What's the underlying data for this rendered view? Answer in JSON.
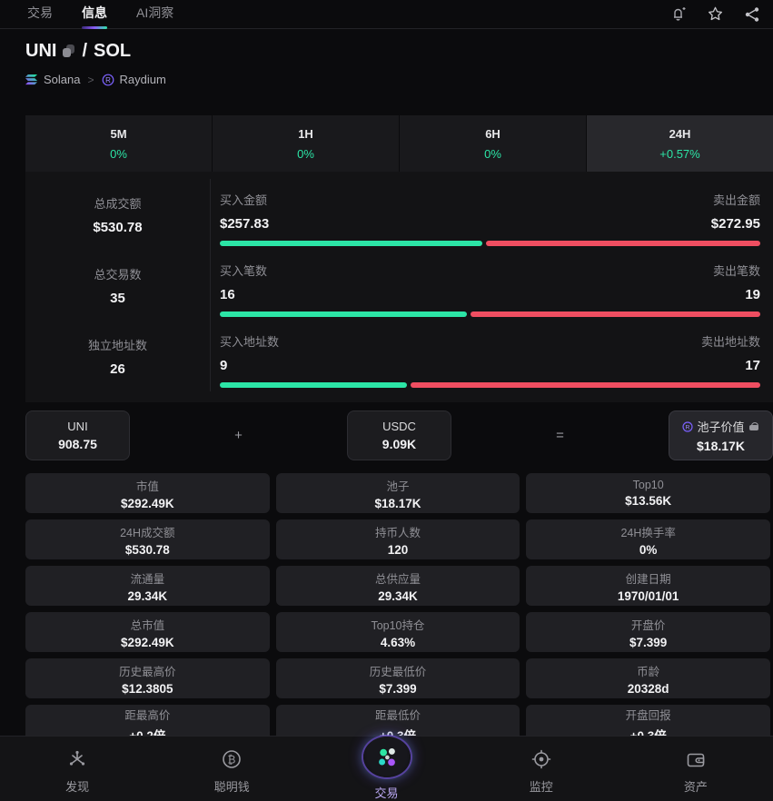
{
  "top_nav": {
    "tabs": [
      {
        "label": "交易",
        "active": false
      },
      {
        "label": "信息",
        "active": true
      },
      {
        "label": "AI洞察",
        "active": false
      }
    ],
    "icons": [
      "alert-bell-plus",
      "star-favorite",
      "share"
    ]
  },
  "header": {
    "base_symbol": "UNI",
    "separator": "/",
    "quote_symbol": "SOL",
    "chain": "Solana",
    "crumb_sep": ">",
    "dex": "Raydium"
  },
  "time_tabs": [
    {
      "label": "5M",
      "change": "0%",
      "active": false
    },
    {
      "label": "1H",
      "change": "0%",
      "active": false
    },
    {
      "label": "6H",
      "change": "0%",
      "active": false
    },
    {
      "label": "24H",
      "change": "+0.57%",
      "active": true
    }
  ],
  "summary": {
    "rows": [
      {
        "total_label": "总成交额",
        "total_value": "$530.78",
        "buy_label": "买入金额",
        "buy_value": "$257.83",
        "sell_label": "卖出金额",
        "sell_value": "$272.95",
        "buy_ratio": 0.486
      },
      {
        "total_label": "总交易数",
        "total_value": "35",
        "buy_label": "买入笔数",
        "buy_value": "16",
        "sell_label": "卖出笔数",
        "sell_value": "19",
        "buy_ratio": 0.457
      },
      {
        "total_label": "独立地址数",
        "total_value": "26",
        "buy_label": "买入地址数",
        "buy_value": "9",
        "sell_label": "卖出地址数",
        "sell_value": "17",
        "buy_ratio": 0.346
      }
    ]
  },
  "pool": {
    "token0": {
      "symbol": "UNI",
      "amount": "908.75"
    },
    "plus": "+",
    "token1": {
      "symbol": "USDC",
      "amount": "9.09K"
    },
    "equals": "=",
    "value": {
      "label": "池子价值",
      "amount": "$18.17K",
      "dex_icon": "raydium-icon",
      "lock_icon": "lock-icon"
    }
  },
  "stats_grid": [
    {
      "label": "市值",
      "value": "$292.49K"
    },
    {
      "label": "池子",
      "value": "$18.17K"
    },
    {
      "label": "Top10",
      "value": "$13.56K"
    },
    {
      "label": "24H成交额",
      "value": "$530.78"
    },
    {
      "label": "持币人数",
      "value": "120"
    },
    {
      "label": "24H换手率",
      "value": "0%"
    },
    {
      "label": "流通量",
      "value": "29.34K"
    },
    {
      "label": "总供应量",
      "value": "29.34K"
    },
    {
      "label": "创建日期",
      "value": "1970/01/01"
    },
    {
      "label": "总市值",
      "value": "$292.49K"
    },
    {
      "label": "Top10持仓",
      "value": "4.63%"
    },
    {
      "label": "开盘价",
      "value": "$7.399"
    },
    {
      "label": "历史最高价",
      "value": "$12.3805"
    },
    {
      "label": "历史最低价",
      "value": "$7.399"
    },
    {
      "label": "币龄",
      "value": "20328d"
    },
    {
      "label": "距最高价",
      "value": "+0.2倍"
    },
    {
      "label": "距最低价",
      "value": "+0.3倍"
    },
    {
      "label": "开盘回报",
      "value": "+0.3倍"
    }
  ],
  "bottom_nav": [
    {
      "label": "发现",
      "icon": "discover-icon",
      "active": false
    },
    {
      "label": "聪明钱",
      "icon": "smart-money-icon",
      "active": false
    },
    {
      "label": "交易",
      "icon": "trade-icon",
      "active": true
    },
    {
      "label": "监控",
      "icon": "monitor-icon",
      "active": false
    },
    {
      "label": "资产",
      "icon": "assets-icon",
      "active": false
    }
  ],
  "colors": {
    "green": "#2ce5a6",
    "red": "#ef4e61",
    "accent_purple": "#8b5cf6"
  }
}
